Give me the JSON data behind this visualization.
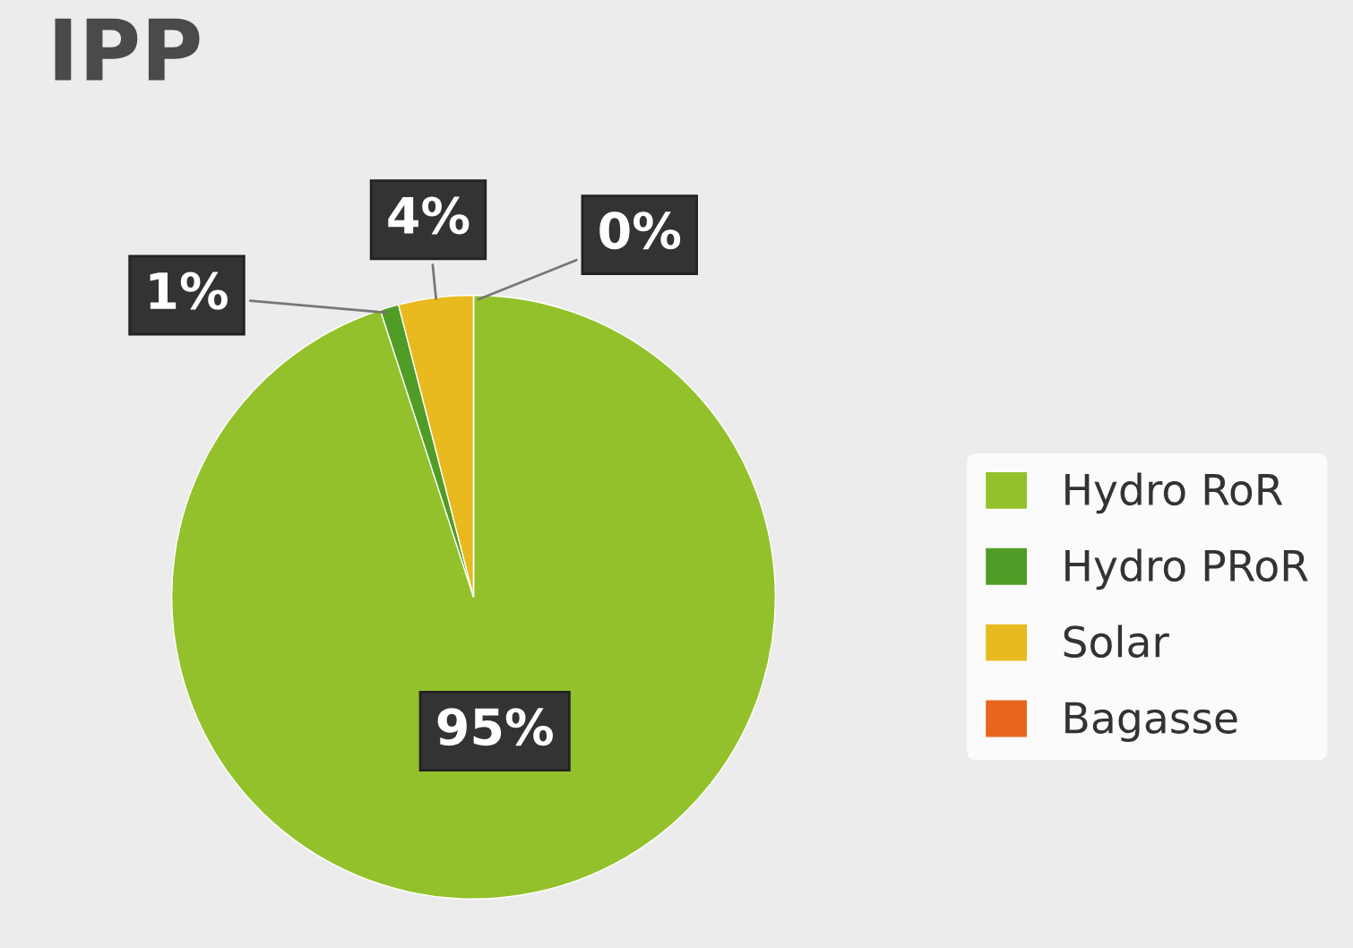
{
  "chart_data": {
    "type": "pie",
    "title": "IPP",
    "categories": [
      "Hydro RoR",
      "Hydro PRoR",
      "Solar",
      "Bagasse"
    ],
    "values": [
      95,
      1,
      4,
      0
    ],
    "colors": [
      "#93c12b",
      "#4f9d27",
      "#e9b920",
      "#e8651c"
    ],
    "value_labels": [
      "95%",
      "1%",
      "4%",
      "0%"
    ],
    "legend": "right"
  }
}
